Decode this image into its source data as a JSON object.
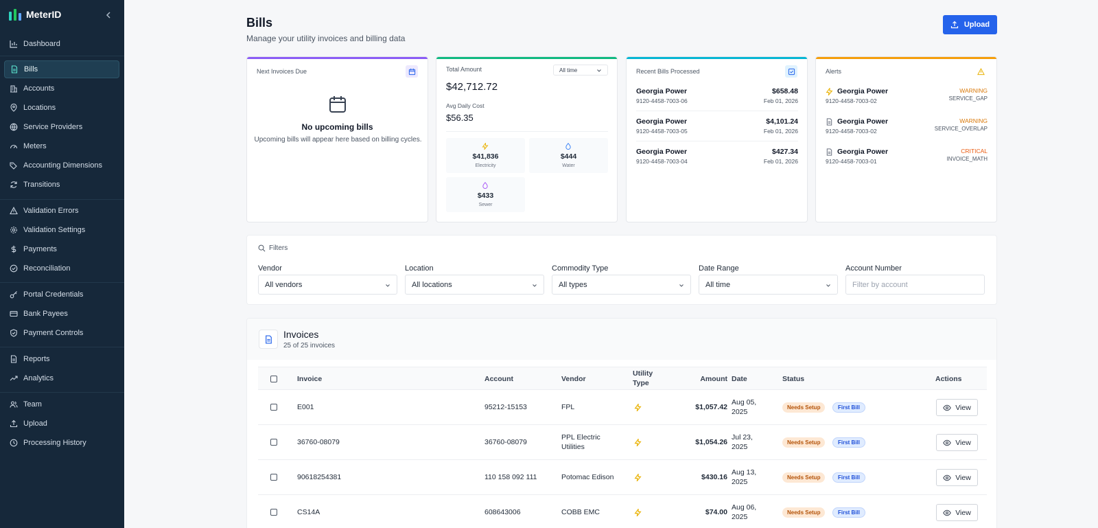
{
  "app": {
    "name": "MeterID"
  },
  "sidebar": {
    "items": [
      {
        "label": "Dashboard"
      },
      {
        "label": "Bills"
      },
      {
        "label": "Accounts"
      },
      {
        "label": "Locations"
      },
      {
        "label": "Service Providers"
      },
      {
        "label": "Meters"
      },
      {
        "label": "Accounting Dimensions"
      },
      {
        "label": "Transitions"
      },
      {
        "label": "Validation Errors"
      },
      {
        "label": "Validation Settings"
      },
      {
        "label": "Payments"
      },
      {
        "label": "Reconciliation"
      },
      {
        "label": "Portal Credentials"
      },
      {
        "label": "Bank Payees"
      },
      {
        "label": "Payment Controls"
      },
      {
        "label": "Reports"
      },
      {
        "label": "Analytics"
      },
      {
        "label": "Team"
      },
      {
        "label": "Upload"
      },
      {
        "label": "Processing History"
      }
    ],
    "active": "Bills"
  },
  "header": {
    "title": "Bills",
    "subtitle": "Manage your utility invoices and billing data",
    "upload_label": "Upload"
  },
  "cards": {
    "next_due": {
      "title": "Next Invoices Due",
      "empty_title": "No upcoming bills",
      "empty_subtitle": "Upcoming bills will appear here based on billing cycles.",
      "accent": "#8b5cf6"
    },
    "total": {
      "title": "Total Amount",
      "range": "All time",
      "amount": "$42,712.72",
      "avg_label": "Avg Daily Cost",
      "avg_amount": "$56.35",
      "accent": "#10b981",
      "breakdown": [
        {
          "value": "$41,836",
          "label": "Electricity",
          "icon": "bolt-icon"
        },
        {
          "value": "$444",
          "label": "Water",
          "icon": "droplet-icon"
        },
        {
          "value": "$433",
          "label": "Sewer",
          "icon": "sewer-icon"
        }
      ]
    },
    "recent": {
      "title": "Recent Bills Processed",
      "accent": "#06b6d4",
      "rows": [
        {
          "vendor": "Georgia Power",
          "account": "9120-4458-7003-06",
          "amount": "$658.48",
          "date": "Feb 01, 2026"
        },
        {
          "vendor": "Georgia Power",
          "account": "9120-4458-7003-05",
          "amount": "$4,101.24",
          "date": "Feb 01, 2026"
        },
        {
          "vendor": "Georgia Power",
          "account": "9120-4458-7003-04",
          "amount": "$427.34",
          "date": "Feb 01, 2026"
        }
      ]
    },
    "alerts": {
      "title": "Alerts",
      "accent": "#f59e0b",
      "rows": [
        {
          "vendor": "Georgia Power",
          "account": "9120-4458-7003-02",
          "level": "WARNING",
          "code": "SERVICE_GAP",
          "icon": "bolt-icon",
          "color": "#d97706"
        },
        {
          "vendor": "Georgia Power",
          "account": "9120-4458-7003-02",
          "level": "WARNING",
          "code": "SERVICE_OVERLAP",
          "icon": "document-icon",
          "color": "#d97706"
        },
        {
          "vendor": "Georgia Power",
          "account": "9120-4458-7003-01",
          "level": "CRITICAL",
          "code": "INVOICE_MATH",
          "icon": "document-icon",
          "color": "#ea580c"
        }
      ]
    }
  },
  "filters": {
    "heading": "Filters",
    "vendor": {
      "label": "Vendor",
      "value": "All vendors"
    },
    "location": {
      "label": "Location",
      "value": "All locations"
    },
    "commodity": {
      "label": "Commodity Type",
      "value": "All types"
    },
    "date_range": {
      "label": "Date Range",
      "value": "All time"
    },
    "account": {
      "label": "Account Number",
      "placeholder": "Filter by account"
    }
  },
  "invoices": {
    "title": "Invoices",
    "count": "25 of 25 invoices",
    "columns": {
      "invoice": "Invoice",
      "account": "Account",
      "vendor": "Vendor",
      "utility_line1": "Utility",
      "utility_line2": "Type",
      "amount": "Amount",
      "date": "Date",
      "status": "Status",
      "actions": "Actions"
    },
    "rows": [
      {
        "invoice": "E001",
        "account": "95212-15153",
        "vendor_l1": "FPL",
        "vendor_l2": "",
        "amount": "$1,057.42",
        "date_l1": "Aug 05,",
        "date_l2": "2025",
        "badge1": "Needs Setup",
        "badge2": "First Bill",
        "action": "View"
      },
      {
        "invoice": "36760-08079",
        "account": "36760-08079",
        "vendor_l1": "PPL Electric",
        "vendor_l2": "Utilities",
        "amount": "$1,054.26",
        "date_l1": "Jul 23,",
        "date_l2": "2025",
        "badge1": "Needs Setup",
        "badge2": "First Bill",
        "action": "View"
      },
      {
        "invoice": "90618254381",
        "account": "110 158 092 111",
        "vendor_l1": "Potomac Edison",
        "vendor_l2": "",
        "amount": "$430.16",
        "date_l1": "Aug 13,",
        "date_l2": "2025",
        "badge1": "Needs Setup",
        "badge2": "First Bill",
        "action": "View"
      },
      {
        "invoice": "CS14A",
        "account": "608643006",
        "vendor_l1": "COBB EMC",
        "vendor_l2": "",
        "amount": "$74.00",
        "date_l1": "Aug 06,",
        "date_l2": "2025",
        "badge1": "Needs Setup",
        "badge2": "First Bill",
        "action": "View"
      }
    ]
  }
}
